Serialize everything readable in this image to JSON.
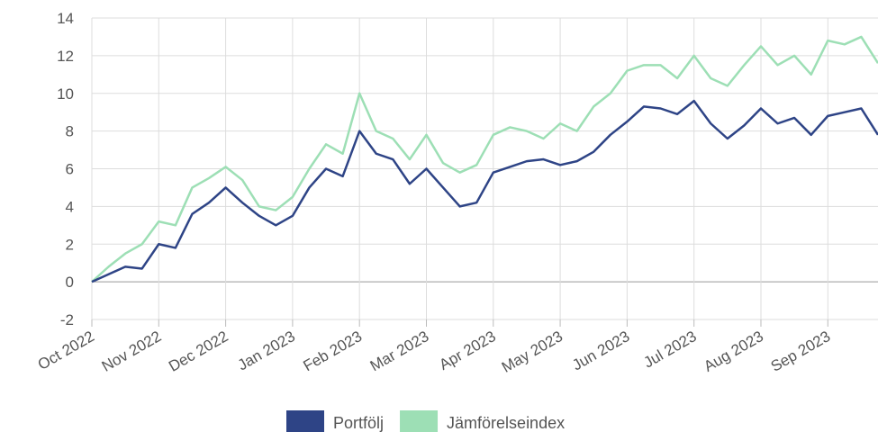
{
  "chart_data": {
    "type": "line",
    "categories": [
      "Oct 2022",
      null,
      null,
      null,
      "Nov 2022",
      null,
      null,
      null,
      "Dec 2022",
      null,
      null,
      null,
      "Jan 2023",
      null,
      null,
      null,
      "Feb 2023",
      null,
      null,
      null,
      "Mar 2023",
      null,
      null,
      null,
      "Apr 2023",
      null,
      null,
      null,
      "May 2023",
      null,
      null,
      null,
      "Jun 2023",
      null,
      null,
      null,
      "Jul 2023",
      null,
      null,
      null,
      "Aug 2023",
      null,
      null,
      null,
      "Sep 2023",
      null,
      null,
      null
    ],
    "series": [
      {
        "name": "Portfölj",
        "color": "#2e4486",
        "values": [
          0,
          0.4,
          0.8,
          0.7,
          2.0,
          1.8,
          3.6,
          4.2,
          5.0,
          4.2,
          3.5,
          3.0,
          3.5,
          5.0,
          6.0,
          5.6,
          8.0,
          6.8,
          6.5,
          5.2,
          6.0,
          5.0,
          4.0,
          4.2,
          5.8,
          6.1,
          6.4,
          6.5,
          6.2,
          6.4,
          6.9,
          7.8,
          8.5,
          9.3,
          9.2,
          8.9,
          9.6,
          8.4,
          7.6,
          8.3,
          9.2,
          8.4,
          8.7,
          7.8,
          8.8,
          9.0,
          9.2,
          7.8
        ]
      },
      {
        "name": "Jämförelseindex",
        "color": "#9ddfb5",
        "values": [
          0,
          0.8,
          1.5,
          2.0,
          3.2,
          3.0,
          5.0,
          5.5,
          6.1,
          5.4,
          4.0,
          3.8,
          4.5,
          6.0,
          7.3,
          6.8,
          10.0,
          8.0,
          7.6,
          6.5,
          7.8,
          6.3,
          5.8,
          6.2,
          7.8,
          8.2,
          8.0,
          7.6,
          8.4,
          8.0,
          9.3,
          10.0,
          11.2,
          11.5,
          11.5,
          10.8,
          12.0,
          10.8,
          10.4,
          11.5,
          12.5,
          11.5,
          12.0,
          11.0,
          12.8,
          12.6,
          13.0,
          11.6
        ]
      }
    ],
    "ylim": [
      -2,
      14
    ],
    "yticks": [
      -2,
      0,
      2,
      4,
      6,
      8,
      10,
      12,
      14
    ],
    "grid": true
  }
}
